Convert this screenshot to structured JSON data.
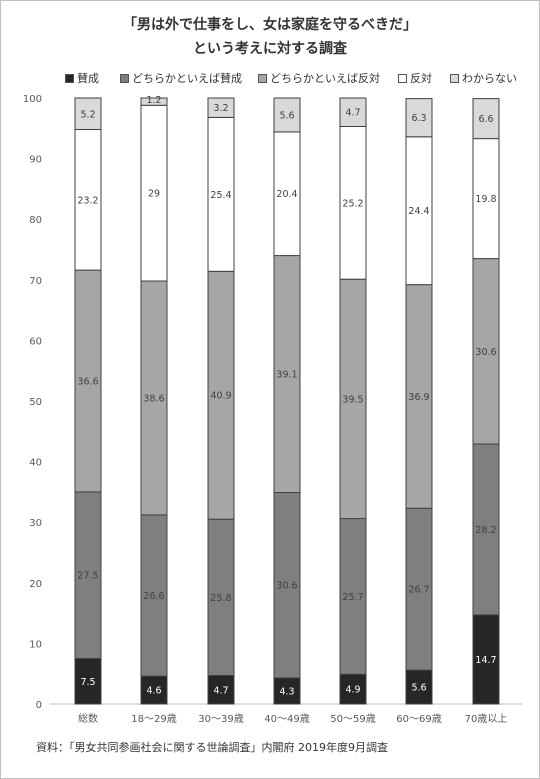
{
  "title_line1": "「男は外で仕事をし、女は家庭を守るべきだ」",
  "title_line2": "という考えに対する調査",
  "source": "資料：「男女共同参画社会に関する世論調査」内閣府 2019年度9月調査",
  "colors": {
    "賛成": "#262626",
    "どちらかといえば賛成": "#7f7f7f",
    "どちらかといえば反対": "#a6a6a6",
    "反対": "#ffffff",
    "わからない": "#d9d9d9"
  },
  "chart_data": {
    "type": "bar",
    "stacked": true,
    "categories": [
      "総数",
      "18～29歳",
      "30～39歳",
      "40～49歳",
      "50～59歳",
      "60～69歳",
      "70歳以上"
    ],
    "series": [
      {
        "name": "賛成",
        "values": [
          7.5,
          4.6,
          4.7,
          4.3,
          4.9,
          5.6,
          14.7
        ]
      },
      {
        "name": "どちらかといえば賛成",
        "values": [
          27.5,
          26.6,
          25.8,
          30.6,
          25.7,
          26.7,
          28.2
        ]
      },
      {
        "name": "どちらかといえば反対",
        "values": [
          36.6,
          38.6,
          40.9,
          39.1,
          39.5,
          36.9,
          30.6
        ]
      },
      {
        "name": "反対",
        "values": [
          23.2,
          29,
          25.4,
          20.4,
          25.2,
          24.4,
          19.8
        ]
      },
      {
        "name": "わからない",
        "values": [
          5.2,
          1.2,
          3.2,
          5.6,
          4.7,
          6.3,
          6.6
        ]
      }
    ],
    "ylim": [
      0,
      100
    ],
    "yticks": [
      0,
      10,
      20,
      30,
      40,
      50,
      60,
      70,
      80,
      90,
      100
    ],
    "grid": false,
    "legend": "top"
  }
}
